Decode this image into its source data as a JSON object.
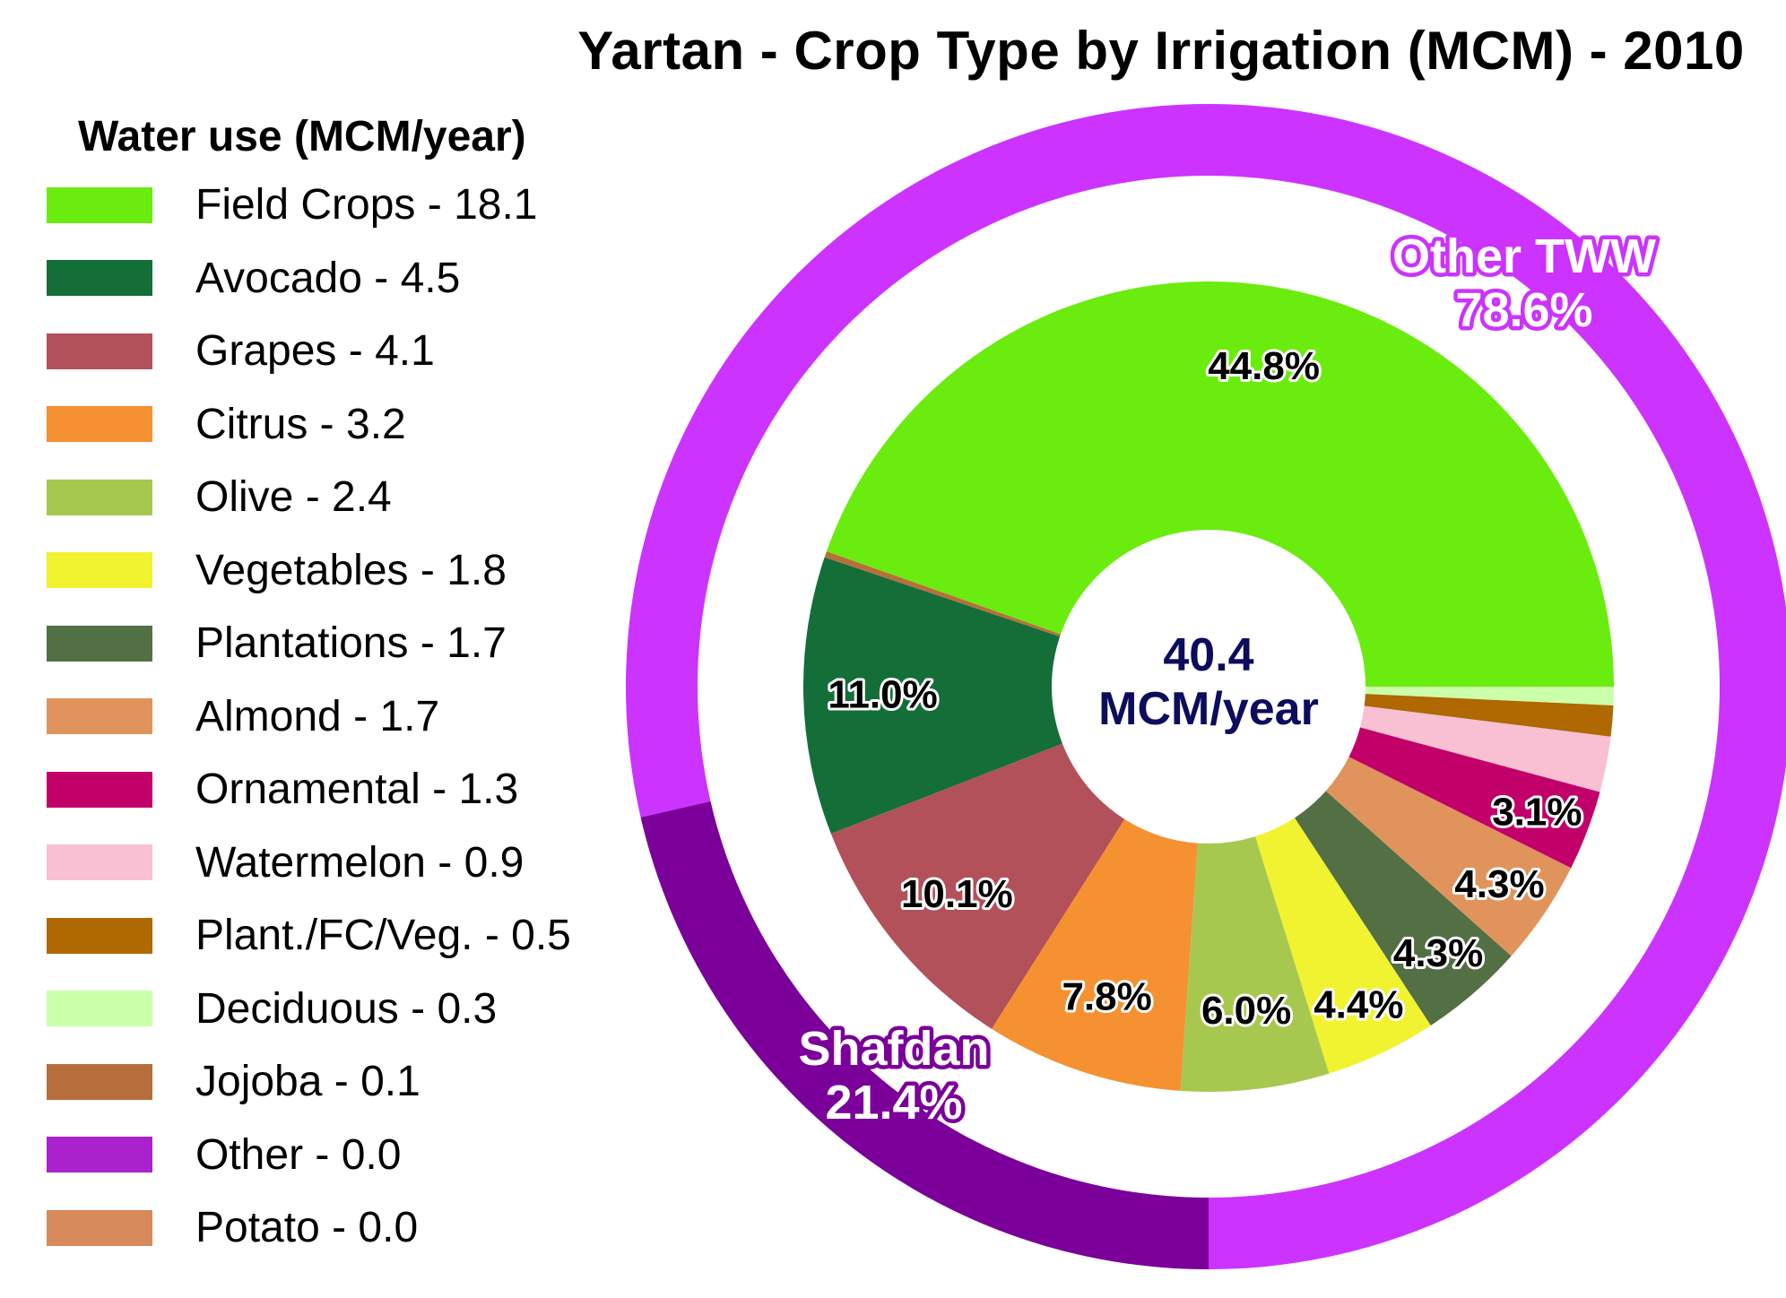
{
  "chart_data": {
    "type": "pie",
    "title": "Yartan - Crop Type by Irrigation (MCM) - 2010",
    "legend_title": "Water use (MCM/year)",
    "center_label": {
      "value": "40.4",
      "unit": "MCM/year"
    },
    "inner_ring": [
      {
        "name": "Field Crops",
        "value": 18.1,
        "legend": "Field Crops - 18.1",
        "color": "#6aec0e",
        "label": "44.8%"
      },
      {
        "name": "Deciduous",
        "value": 0.3,
        "legend": "Deciduous - 0.3",
        "color": "#ccffaa",
        "label": ""
      },
      {
        "name": "Plant./FC/Veg.",
        "value": 0.5,
        "legend": "Plant./FC/Veg. - 0.5",
        "color": "#b06800",
        "label": ""
      },
      {
        "name": "Watermelon",
        "value": 0.9,
        "legend": "Watermelon - 0.9",
        "color": "#f9bfd3",
        "label": ""
      },
      {
        "name": "Ornamental",
        "value": 1.3,
        "legend": "Ornamental - 1.3",
        "color": "#c2006a",
        "label": "3.1%"
      },
      {
        "name": "Almond",
        "value": 1.7,
        "legend": "Almond - 1.7",
        "color": "#e0945c",
        "label": "4.3%"
      },
      {
        "name": "Plantations",
        "value": 1.7,
        "legend": "Plantations - 1.7",
        "color": "#527044",
        "label": "4.3%"
      },
      {
        "name": "Vegetables",
        "value": 1.8,
        "legend": "Vegetables - 1.8",
        "color": "#f1f230",
        "label": "4.4%"
      },
      {
        "name": "Olive",
        "value": 2.4,
        "legend": "Olive - 2.4",
        "color": "#a7c84f",
        "label": "6.0%"
      },
      {
        "name": "Citrus",
        "value": 3.2,
        "legend": "Citrus - 3.2",
        "color": "#f59130",
        "label": "7.8%"
      },
      {
        "name": "Grapes",
        "value": 4.1,
        "legend": "Grapes - 4.1",
        "color": "#b3515b",
        "label": "10.1%"
      },
      {
        "name": "Avocado",
        "value": 4.5,
        "legend": "Avocado - 4.5",
        "color": "#146e38",
        "label": "11.0%"
      },
      {
        "name": "Jojoba",
        "value": 0.1,
        "legend": "Jojoba - 0.1",
        "color": "#b66f3b",
        "label": ""
      },
      {
        "name": "Other",
        "value": 0.0,
        "legend": "Other - 0.0",
        "color": "#aa22cc",
        "label": ""
      },
      {
        "name": "Potato",
        "value": 0.0,
        "legend": "Potato - 0.0",
        "color": "#d6895a",
        "label": ""
      }
    ],
    "legend_order": [
      "Field Crops",
      "Avocado",
      "Grapes",
      "Citrus",
      "Olive",
      "Vegetables",
      "Plantations",
      "Almond",
      "Ornamental",
      "Watermelon",
      "Plant./FC/Veg.",
      "Deciduous",
      "Jojoba",
      "Other",
      "Potato"
    ],
    "outer_ring": [
      {
        "name": "Other TWW",
        "percent": 78.6,
        "color": "#cc33ff",
        "label_line1": "Other TWW",
        "label_line2": "78.6%"
      },
      {
        "name": "Shafdan",
        "percent": 21.4,
        "color": "#7a0099",
        "label_line1": "Shafdan",
        "label_line2": "21.4%"
      }
    ]
  }
}
